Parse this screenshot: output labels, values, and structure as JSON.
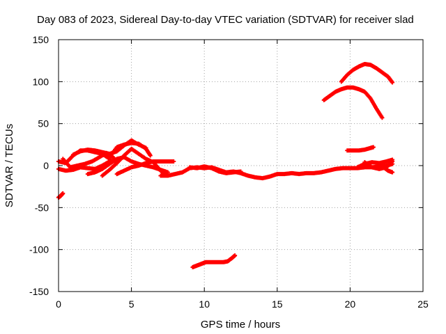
{
  "chart_data": {
    "type": "scatter",
    "title": "Day 083 of 2023, Sidereal Day-to-day VTEC variation (SDTVAR) for receiver slad",
    "xlabel": "GPS time / hours",
    "ylabel": "SDTVAR / TECUs",
    "xlim": [
      0,
      25
    ],
    "ylim": [
      -150,
      150
    ],
    "xticks": [
      0,
      5,
      10,
      15,
      20,
      25
    ],
    "yticks": [
      -150,
      -100,
      -50,
      0,
      50,
      100,
      150
    ],
    "grid": true,
    "marker": "+",
    "color": "#ff0000",
    "series": [
      {
        "name": "arc-start-low",
        "x": [
          0.0,
          0.15,
          0.3
        ],
        "y": [
          -38,
          -36,
          -33
        ]
      },
      {
        "name": "arc-a",
        "x": [
          0.0,
          0.5,
          1.0,
          1.5,
          2.0,
          2.5,
          3.0,
          3.5,
          4.0
        ],
        "y": [
          -4,
          -6,
          -5,
          -2,
          -3,
          -4,
          0,
          5,
          6
        ]
      },
      {
        "name": "arc-b",
        "x": [
          0.0,
          0.5,
          1.0,
          1.5,
          2.0,
          2.5,
          3.0,
          3.5
        ],
        "y": [
          5,
          3,
          12,
          18,
          18,
          16,
          14,
          8
        ]
      },
      {
        "name": "arc-c",
        "x": [
          0.3,
          0.8,
          1.3,
          1.8,
          2.3,
          2.8,
          3.3,
          3.8
        ],
        "y": [
          8,
          -2,
          0,
          2,
          5,
          10,
          15,
          9
        ]
      },
      {
        "name": "arc-d",
        "x": [
          1.0,
          1.5,
          2.0,
          2.5,
          3.0,
          3.5,
          4.0,
          4.5,
          5.0,
          5.5,
          6.0
        ],
        "y": [
          13,
          17,
          19,
          18,
          16,
          14,
          17,
          24,
          30,
          25,
          21
        ]
      },
      {
        "name": "arc-e",
        "x": [
          2.0,
          2.5,
          3.0,
          3.5,
          4.0,
          4.5,
          5.0,
          5.5,
          6.0,
          6.5,
          7.0,
          7.5
        ],
        "y": [
          -10,
          -8,
          -4,
          2,
          8,
          10,
          5,
          2,
          0,
          -2,
          -5,
          -8
        ]
      },
      {
        "name": "arc-f",
        "x": [
          3.0,
          3.5,
          4.0,
          4.5,
          5.0,
          5.5,
          6.0,
          6.5,
          7.0,
          7.3
        ],
        "y": [
          -12,
          -5,
          3,
          12,
          20,
          14,
          8,
          4,
          -6,
          -10
        ]
      },
      {
        "name": "arc-g",
        "x": [
          4.0,
          4.5,
          5.0,
          5.5,
          6.0,
          6.5,
          7.0,
          7.5,
          7.9
        ],
        "y": [
          -10,
          -6,
          -2,
          0,
          3,
          5,
          5,
          5,
          5
        ]
      },
      {
        "name": "arc-h",
        "x": [
          3.5,
          4.0,
          4.5,
          5.0,
          5.5,
          6.0,
          6.3
        ],
        "y": [
          10,
          22,
          25,
          27,
          26,
          20,
          12
        ]
      },
      {
        "name": "main-band",
        "x": [
          7.0,
          7.5,
          8.0,
          8.5,
          9.0,
          9.5,
          10.0,
          10.5,
          11.0,
          11.5,
          12.0,
          12.5,
          13.0,
          13.5,
          14.0,
          14.5,
          15.0,
          15.5,
          16.0,
          16.5,
          17.0,
          17.5,
          18.0,
          18.5,
          19.0,
          19.5,
          20.0,
          20.5,
          21.0,
          21.5,
          22.0,
          22.5,
          22.9
        ],
        "y": [
          -12,
          -12,
          -10,
          -8,
          -3,
          -2,
          -3,
          -2,
          -5,
          -8,
          -7,
          -9,
          -12,
          -14,
          -15,
          -13,
          -10,
          -10,
          -9,
          -10,
          -9,
          -9,
          -8,
          -6,
          -4,
          -3,
          -3,
          -3,
          -2,
          -2,
          -1,
          0,
          2
        ]
      },
      {
        "name": "band-upper",
        "x": [
          9.0,
          9.5,
          10.0,
          10.5,
          11.0,
          11.5,
          12.0,
          12.5
        ],
        "y": [
          -2,
          -3,
          -1,
          -3,
          -7,
          -9,
          -8,
          -7
        ]
      },
      {
        "name": "arc-end-a",
        "x": [
          20.5,
          21.0,
          21.5,
          22.0,
          22.5,
          22.9
        ],
        "y": [
          -2,
          2,
          4,
          3,
          5,
          7
        ]
      },
      {
        "name": "arc-end-b",
        "x": [
          21.0,
          21.5,
          22.0,
          22.5,
          22.9
        ],
        "y": [
          4,
          -2,
          -4,
          -2,
          5
        ]
      },
      {
        "name": "arc-end-c",
        "x": [
          22.3,
          22.6,
          22.9
        ],
        "y": [
          -2,
          -6,
          -8
        ]
      },
      {
        "name": "arc-low",
        "x": [
          9.2,
          9.5,
          9.8,
          10.1,
          10.4,
          10.7,
          11.0,
          11.3,
          11.6,
          11.9,
          12.1
        ],
        "y": [
          -121,
          -119,
          -117,
          -115,
          -115,
          -115,
          -115,
          -115,
          -114,
          -110,
          -107
        ]
      },
      {
        "name": "arc-mid",
        "x": [
          19.8,
          20.2,
          20.6,
          21.0,
          21.4,
          21.6
        ],
        "y": [
          18,
          18,
          18,
          19,
          21,
          22
        ]
      },
      {
        "name": "arc-high-1",
        "x": [
          18.2,
          18.6,
          19.0,
          19.4,
          19.8,
          20.2,
          20.6,
          21.0,
          21.4,
          21.8,
          22.2
        ],
        "y": [
          78,
          83,
          88,
          91,
          93,
          93,
          91,
          88,
          80,
          68,
          57
        ]
      },
      {
        "name": "arc-high-2",
        "x": [
          19.4,
          19.8,
          20.2,
          20.6,
          21.0,
          21.4,
          21.8,
          22.2,
          22.6,
          22.9
        ],
        "y": [
          100,
          108,
          114,
          118,
          121,
          120,
          116,
          111,
          106,
          99
        ]
      }
    ]
  }
}
